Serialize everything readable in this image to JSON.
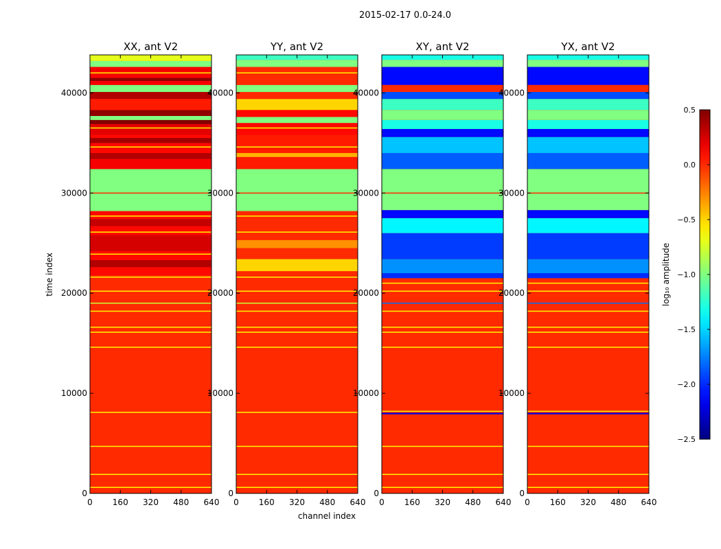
{
  "figure": {
    "suptitle": "2015-02-17 0.0-24.0"
  },
  "chart_data": {
    "type": "heatmap",
    "title": "2015-02-17 0.0-24.0",
    "xlabel": "channel index",
    "ylabel": "time index",
    "xlim": [
      0,
      640
    ],
    "ylim": [
      0,
      43800
    ],
    "xticks": [
      0,
      160,
      320,
      480,
      640
    ],
    "yticks": [
      0,
      10000,
      20000,
      30000,
      40000
    ],
    "colorbar": {
      "label": "log₁₀ amplitude",
      "range": [
        -2.5,
        0.5
      ],
      "ticks": [
        "0.5",
        "0.0",
        "−0.5",
        "−1.0",
        "−1.5",
        "−2.0",
        "−2.5"
      ],
      "tick_values": [
        0.5,
        0.0,
        -0.5,
        -1.0,
        -1.5,
        -2.0,
        -2.5
      ],
      "colormap": "jet"
    },
    "panels": [
      {
        "title": "XX, ant V2",
        "background_value": 0.0,
        "bands": [
          {
            "t0": 0,
            "t1": 18500,
            "v": 0.0
          },
          {
            "t0": 18500,
            "t1": 21800,
            "v": 0.0
          },
          {
            "t0": 21800,
            "t1": 28200,
            "v": 0.1
          },
          {
            "t0": 22600,
            "t1": 23300,
            "v": 0.35
          },
          {
            "t0": 24200,
            "t1": 25800,
            "v": 0.25
          },
          {
            "t0": 26700,
            "t1": 27400,
            "v": 0.3
          },
          {
            "t0": 28200,
            "t1": 32400,
            "v": -1.0
          },
          {
            "t0": 32400,
            "t1": 33400,
            "v": 0.15
          },
          {
            "t0": 33400,
            "t1": 34000,
            "v": 0.35
          },
          {
            "t0": 34000,
            "t1": 35800,
            "v": 0.1
          },
          {
            "t0": 35000,
            "t1": 35500,
            "v": 0.4
          },
          {
            "t0": 35800,
            "t1": 36900,
            "v": 0.2
          },
          {
            "t0": 36900,
            "t1": 37300,
            "v": 0.5
          },
          {
            "t0": 37300,
            "t1": 37700,
            "v": -1.0
          },
          {
            "t0": 37700,
            "t1": 38300,
            "v": 0.45
          },
          {
            "t0": 38300,
            "t1": 39400,
            "v": 0.05
          },
          {
            "t0": 39400,
            "t1": 40100,
            "v": 0.35
          },
          {
            "t0": 40100,
            "t1": 40800,
            "v": -1.0
          },
          {
            "t0": 40800,
            "t1": 42600,
            "v": 0.15
          },
          {
            "t0": 41200,
            "t1": 41500,
            "v": 0.45
          },
          {
            "t0": 42600,
            "t1": 43200,
            "v": -1.0
          },
          {
            "t0": 43200,
            "t1": 43800,
            "v": -0.7
          }
        ],
        "lines": [
          {
            "t": 600,
            "v": -0.6
          },
          {
            "t": 1900,
            "v": -0.6
          },
          {
            "t": 4700,
            "v": -0.6
          },
          {
            "t": 8100,
            "v": -0.6
          },
          {
            "t": 14600,
            "v": -0.6
          },
          {
            "t": 16100,
            "v": -0.6
          },
          {
            "t": 16600,
            "v": -0.6
          },
          {
            "t": 18200,
            "v": -0.6
          },
          {
            "t": 19000,
            "v": -0.8
          },
          {
            "t": 20200,
            "v": -0.6
          },
          {
            "t": 21600,
            "v": -0.6
          },
          {
            "t": 23900,
            "v": -0.6
          },
          {
            "t": 26100,
            "v": -0.6
          },
          {
            "t": 27700,
            "v": -0.6
          },
          {
            "t": 30000,
            "v": 0.0
          },
          {
            "t": 34600,
            "v": -0.6
          },
          {
            "t": 36500,
            "v": -0.6
          },
          {
            "t": 42000,
            "v": -0.6
          }
        ]
      },
      {
        "title": "YY, ant V2",
        "background_value": 0.0,
        "bands": [
          {
            "t0": 0,
            "t1": 21800,
            "v": 0.0
          },
          {
            "t0": 21800,
            "t1": 28200,
            "v": 0.0
          },
          {
            "t0": 22200,
            "t1": 23400,
            "v": -0.5
          },
          {
            "t0": 24500,
            "t1": 25300,
            "v": -0.3
          },
          {
            "t0": 28200,
            "t1": 32400,
            "v": -1.0
          },
          {
            "t0": 32400,
            "t1": 35800,
            "v": 0.05
          },
          {
            "t0": 33600,
            "t1": 34000,
            "v": -0.4
          },
          {
            "t0": 35800,
            "t1": 37000,
            "v": 0.1
          },
          {
            "t0": 37000,
            "t1": 37600,
            "v": -1.0
          },
          {
            "t0": 37600,
            "t1": 38300,
            "v": 0.1
          },
          {
            "t0": 38300,
            "t1": 39400,
            "v": -0.5
          },
          {
            "t0": 39400,
            "t1": 40100,
            "v": 0.0
          },
          {
            "t0": 40100,
            "t1": 40800,
            "v": -1.0
          },
          {
            "t0": 40800,
            "t1": 42600,
            "v": 0.0
          },
          {
            "t0": 42600,
            "t1": 43300,
            "v": -1.0
          },
          {
            "t0": 43300,
            "t1": 43800,
            "v": -1.2
          }
        ],
        "lines": [
          {
            "t": 600,
            "v": -0.6
          },
          {
            "t": 1900,
            "v": -0.6
          },
          {
            "t": 4700,
            "v": -0.6
          },
          {
            "t": 8100,
            "v": -0.6
          },
          {
            "t": 14600,
            "v": -0.6
          },
          {
            "t": 16100,
            "v": -0.6
          },
          {
            "t": 16600,
            "v": -0.6
          },
          {
            "t": 18200,
            "v": -0.6
          },
          {
            "t": 19000,
            "v": -0.8
          },
          {
            "t": 20200,
            "v": -0.6
          },
          {
            "t": 21600,
            "v": -0.6
          },
          {
            "t": 26100,
            "v": -0.6
          },
          {
            "t": 27700,
            "v": -0.6
          },
          {
            "t": 30000,
            "v": 0.0
          },
          {
            "t": 34600,
            "v": -0.6
          },
          {
            "t": 36500,
            "v": -0.6
          },
          {
            "t": 42000,
            "v": -0.6
          }
        ]
      },
      {
        "title": "XY, ant V2",
        "background_value": 0.0,
        "bands": [
          {
            "t0": 0,
            "t1": 21500,
            "v": 0.0
          },
          {
            "t0": 7900,
            "t1": 8050,
            "v": -2.2
          },
          {
            "t0": 21500,
            "t1": 22000,
            "v": -2.0
          },
          {
            "t0": 22000,
            "t1": 23400,
            "v": -1.7
          },
          {
            "t0": 23400,
            "t1": 26000,
            "v": -1.95
          },
          {
            "t0": 26000,
            "t1": 27500,
            "v": -1.4
          },
          {
            "t0": 27500,
            "t1": 28300,
            "v": -2.1
          },
          {
            "t0": 28300,
            "t1": 32400,
            "v": -1.0
          },
          {
            "t0": 32400,
            "t1": 34000,
            "v": -1.85
          },
          {
            "t0": 34000,
            "t1": 35600,
            "v": -1.55
          },
          {
            "t0": 35600,
            "t1": 36400,
            "v": -2.1
          },
          {
            "t0": 36400,
            "t1": 37300,
            "v": -1.3
          },
          {
            "t0": 37300,
            "t1": 38300,
            "v": -1.0
          },
          {
            "t0": 38300,
            "t1": 39400,
            "v": -1.2
          },
          {
            "t0": 39400,
            "t1": 40100,
            "v": -1.9
          },
          {
            "t0": 40100,
            "t1": 40800,
            "v": 0.0
          },
          {
            "t0": 40800,
            "t1": 42600,
            "v": -2.1
          },
          {
            "t0": 42600,
            "t1": 43300,
            "v": -1.0
          },
          {
            "t0": 43300,
            "t1": 43800,
            "v": -1.3
          }
        ],
        "lines": [
          {
            "t": 600,
            "v": -0.6
          },
          {
            "t": 1900,
            "v": -0.6
          },
          {
            "t": 4700,
            "v": -0.6
          },
          {
            "t": 8200,
            "v": -0.6
          },
          {
            "t": 14600,
            "v": -0.6
          },
          {
            "t": 16100,
            "v": -0.6
          },
          {
            "t": 16600,
            "v": -0.6
          },
          {
            "t": 18200,
            "v": -0.6
          },
          {
            "t": 19000,
            "v": -1.8
          },
          {
            "t": 20200,
            "v": -0.6
          },
          {
            "t": 21000,
            "v": -0.6
          },
          {
            "t": 30000,
            "v": 0.0
          }
        ]
      },
      {
        "title": "YX, ant V2",
        "background_value": 0.0,
        "bands": [
          {
            "t0": 0,
            "t1": 21500,
            "v": 0.0
          },
          {
            "t0": 7900,
            "t1": 8050,
            "v": -2.2
          },
          {
            "t0": 21500,
            "t1": 22000,
            "v": -2.0
          },
          {
            "t0": 22000,
            "t1": 23400,
            "v": -1.7
          },
          {
            "t0": 23400,
            "t1": 26000,
            "v": -1.95
          },
          {
            "t0": 26000,
            "t1": 27500,
            "v": -1.4
          },
          {
            "t0": 27500,
            "t1": 28300,
            "v": -2.1
          },
          {
            "t0": 28300,
            "t1": 32400,
            "v": -1.0
          },
          {
            "t0": 32400,
            "t1": 34000,
            "v": -1.85
          },
          {
            "t0": 34000,
            "t1": 35600,
            "v": -1.55
          },
          {
            "t0": 35600,
            "t1": 36400,
            "v": -2.1
          },
          {
            "t0": 36400,
            "t1": 37300,
            "v": -1.3
          },
          {
            "t0": 37300,
            "t1": 38300,
            "v": -1.0
          },
          {
            "t0": 38300,
            "t1": 39400,
            "v": -1.2
          },
          {
            "t0": 39400,
            "t1": 40100,
            "v": -1.9
          },
          {
            "t0": 40100,
            "t1": 40800,
            "v": 0.0
          },
          {
            "t0": 40800,
            "t1": 42600,
            "v": -2.1
          },
          {
            "t0": 42600,
            "t1": 43300,
            "v": -1.0
          },
          {
            "t0": 43300,
            "t1": 43800,
            "v": -1.3
          }
        ],
        "lines": [
          {
            "t": 600,
            "v": -0.6
          },
          {
            "t": 1900,
            "v": -0.6
          },
          {
            "t": 4700,
            "v": -0.6
          },
          {
            "t": 8200,
            "v": -0.6
          },
          {
            "t": 14600,
            "v": -0.6
          },
          {
            "t": 16100,
            "v": -0.6
          },
          {
            "t": 16600,
            "v": -0.6
          },
          {
            "t": 18200,
            "v": -0.6
          },
          {
            "t": 19000,
            "v": -1.8
          },
          {
            "t": 20200,
            "v": -0.6
          },
          {
            "t": 21000,
            "v": -0.6
          },
          {
            "t": 30000,
            "v": 0.0
          }
        ]
      }
    ]
  }
}
